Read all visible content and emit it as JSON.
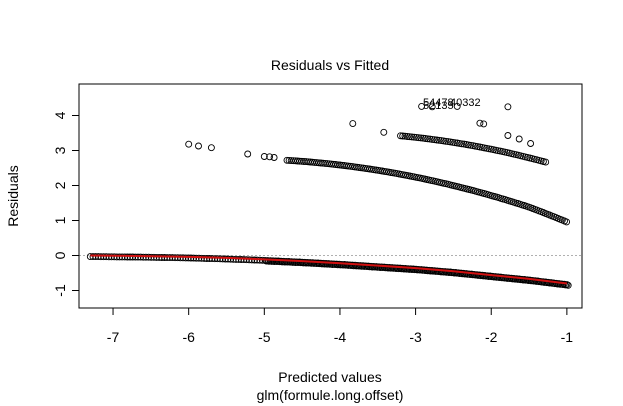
{
  "chart_data": {
    "type": "scatter",
    "title": "Residuals vs Fitted",
    "xlabel": "Predicted values",
    "subtitle": "glm(formule.long.offset)",
    "ylabel": "Residuals",
    "xlim": [
      -7.45,
      -0.8
    ],
    "ylim": [
      -1.5,
      4.9
    ],
    "xticks": [
      -7,
      -6,
      -5,
      -4,
      -3,
      -2,
      -1
    ],
    "yticks": [
      -1,
      0,
      1,
      2,
      3,
      4
    ],
    "zero_line": {
      "y": 0,
      "style": "dotted",
      "color": "#b0b0b0"
    },
    "grid": false,
    "point_labels": [
      "54478",
      "52135",
      "40332"
    ],
    "outlier_points": [
      [
        -6.0,
        3.18
      ],
      [
        -5.87,
        3.13
      ],
      [
        -5.7,
        3.08
      ],
      [
        -5.22,
        2.9
      ],
      [
        -5.0,
        2.83
      ],
      [
        -4.93,
        2.82
      ],
      [
        -4.87,
        2.8
      ],
      [
        -3.83,
        3.77
      ],
      [
        -3.42,
        3.52
      ],
      [
        -2.92,
        4.26
      ],
      [
        -2.78,
        4.25
      ],
      [
        -2.45,
        4.26
      ],
      [
        -1.78,
        4.25
      ],
      [
        -2.15,
        3.78
      ],
      [
        -2.1,
        3.76
      ],
      [
        -1.78,
        3.43
      ],
      [
        -1.63,
        3.33
      ],
      [
        -1.48,
        3.2
      ]
    ],
    "band_upper_x": [
      -3.2,
      -1.28
    ],
    "band_middle_x": [
      -4.7,
      -0.98
    ],
    "band_lower_x": [
      -7.3,
      -0.98
    ],
    "smooth_line": {
      "color": "#d01010",
      "x": [
        -7.3,
        -6.5,
        -6.0,
        -5.5,
        -5.0,
        -4.5,
        -4.0,
        -3.5,
        -3.0,
        -2.5,
        -2.0,
        -1.5,
        -1.0
      ],
      "y": [
        0.0,
        -0.02,
        -0.04,
        -0.07,
        -0.11,
        -0.16,
        -0.22,
        -0.29,
        -0.36,
        -0.45,
        -0.56,
        -0.67,
        -0.8
      ]
    }
  }
}
